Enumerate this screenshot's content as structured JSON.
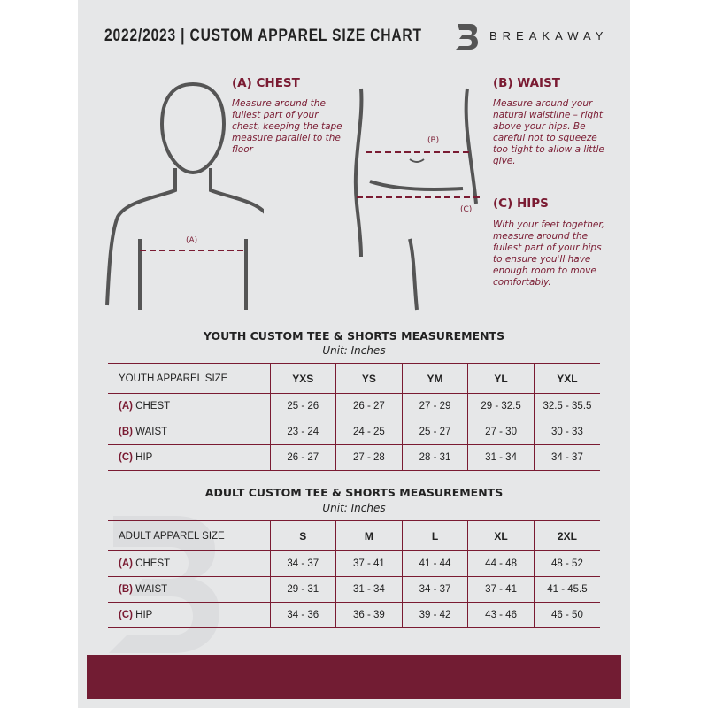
{
  "header": {
    "title": "2022/2023  |  CUSTOM APPAREL SIZE CHART",
    "brand": "BREAKAWAY",
    "logo_letter": "B"
  },
  "colors": {
    "accent": "#7a1b32",
    "background": "#e6e7e8",
    "footer": "#721c33"
  },
  "chest": {
    "heading": "(A) CHEST",
    "text": "Measure around the fullest part of your chest, keeping the tape measure parallel to the floor",
    "marker": "(A)"
  },
  "waist": {
    "heading": "(B) WAIST",
    "text": "Measure around your natural waistline – right above your hips. Be careful not to squeeze too tight to allow a little give.",
    "marker": "(B)"
  },
  "hips": {
    "heading": "(C) HIPS",
    "text": "With your feet together, measure around the fullest part of your hips to ensure you'll have enough room to move comfortably.",
    "marker": "(C)"
  },
  "youth": {
    "title": "YOUTH CUSTOM TEE & SHORTS MEASUREMENTS",
    "unit": "Unit: Inches",
    "header": [
      "YOUTH APPAREL SIZE",
      "YXS",
      "YS",
      "YM",
      "YL",
      "YXL"
    ],
    "rows": [
      {
        "code": "(A)",
        "name": "CHEST",
        "values": [
          "25 - 26",
          "26 - 27",
          "27 - 29",
          "29 - 32.5",
          "32.5 - 35.5"
        ]
      },
      {
        "code": "(B)",
        "name": "WAIST",
        "values": [
          "23 - 24",
          "24 - 25",
          "25 - 27",
          "27 - 30",
          "30 - 33"
        ]
      },
      {
        "code": "(C)",
        "name": "HIP",
        "values": [
          "26 - 27",
          "27 - 28",
          "28 - 31",
          "31 - 34",
          "34 - 37"
        ]
      }
    ]
  },
  "adult": {
    "title": "ADULT CUSTOM TEE & SHORTS MEASUREMENTS",
    "unit": "Unit: Inches",
    "header": [
      "ADULT APPAREL SIZE",
      "S",
      "M",
      "L",
      "XL",
      "2XL"
    ],
    "rows": [
      {
        "code": "(A)",
        "name": "CHEST",
        "values": [
          "34 - 37",
          "37 - 41",
          "41 - 44",
          "44 - 48",
          "48 - 52"
        ]
      },
      {
        "code": "(B)",
        "name": "WAIST",
        "values": [
          "29 - 31",
          "31 - 34",
          "34 - 37",
          "37 - 41",
          "41 - 45.5"
        ]
      },
      {
        "code": "(C)",
        "name": "HIP",
        "values": [
          "34 - 36",
          "36 - 39",
          "39 - 42",
          "43 - 46",
          "46 - 50"
        ]
      }
    ]
  }
}
